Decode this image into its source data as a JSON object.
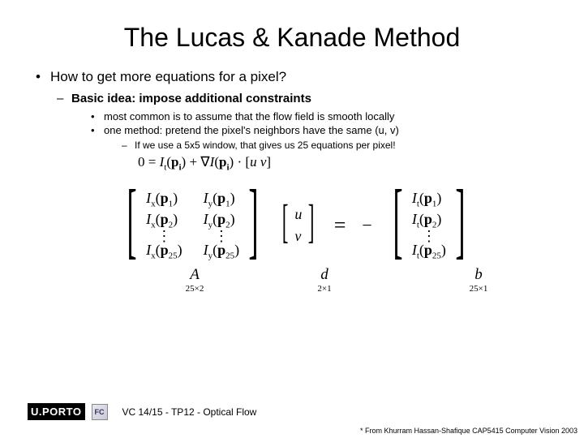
{
  "title": "The Lucas & Kanade Method",
  "bullets": {
    "l1": "How to get more equations for a pixel?",
    "l2": "Basic idea:  impose additional constraints",
    "l3a": "most common is to assume that the flow field is smooth locally",
    "l3b": "one method:  pretend the pixel's neighbors have the same (u, v)",
    "l4": "If we use a 5x5 window, that gives us 25 equations per pixel!"
  },
  "equation1": {
    "lhs": "0 =",
    "term1_I": "I",
    "term1_sub": "t",
    "term1_arg_p": "p",
    "term1_arg_sub": "i",
    "plus": " + ",
    "grad": "∇",
    "term2_I": "I",
    "term2_arg_p": "p",
    "term2_arg_sub": "i",
    "dot": " · ",
    "vec_open": "[",
    "u": "u",
    "v": " v",
    "vec_close": "]"
  },
  "matrixA": {
    "rows": [
      {
        "c1_I": "I",
        "c1_sub": "x",
        "c1_p": "p",
        "c1_psub": "1",
        "c2_I": "I",
        "c2_sub": "y",
        "c2_p": "p",
        "c2_psub": "1"
      },
      {
        "c1_I": "I",
        "c1_sub": "x",
        "c1_p": "p",
        "c1_psub": "2",
        "c2_I": "I",
        "c2_sub": "y",
        "c2_p": "p",
        "c2_psub": "2"
      }
    ],
    "vdots": "⋮",
    "last": {
      "c1_I": "I",
      "c1_sub": "x",
      "c1_p": "p",
      "c1_psub": "25",
      "c2_I": "I",
      "c2_sub": "y",
      "c2_p": "p",
      "c2_psub": "25"
    }
  },
  "vec_d": {
    "u": "u",
    "v": "v"
  },
  "eq": "=",
  "minus": "−",
  "vec_b": {
    "rows": [
      {
        "I": "I",
        "sub": "t",
        "p": "p",
        "psub": "1"
      },
      {
        "I": "I",
        "sub": "t",
        "p": "p",
        "psub": "2"
      }
    ],
    "vdots": "⋮",
    "last": {
      "I": "I",
      "sub": "t",
      "p": "p",
      "psub": "25"
    }
  },
  "labels": {
    "A_sym": "A",
    "A_dim": "25×2",
    "d_sym": "d",
    "d_dim": "2×1",
    "b_sym": "b",
    "b_dim": "25×1"
  },
  "footer": {
    "logo_text": "U.PORTO",
    "fc": "FC",
    "text": "VC 14/15 - TP12 - Optical Flow"
  },
  "attribution": "* From Khurram Hassan-Shafique CAP5415 Computer Vision 2003",
  "colors": {
    "bg": "#ffffff",
    "text": "#000000"
  }
}
